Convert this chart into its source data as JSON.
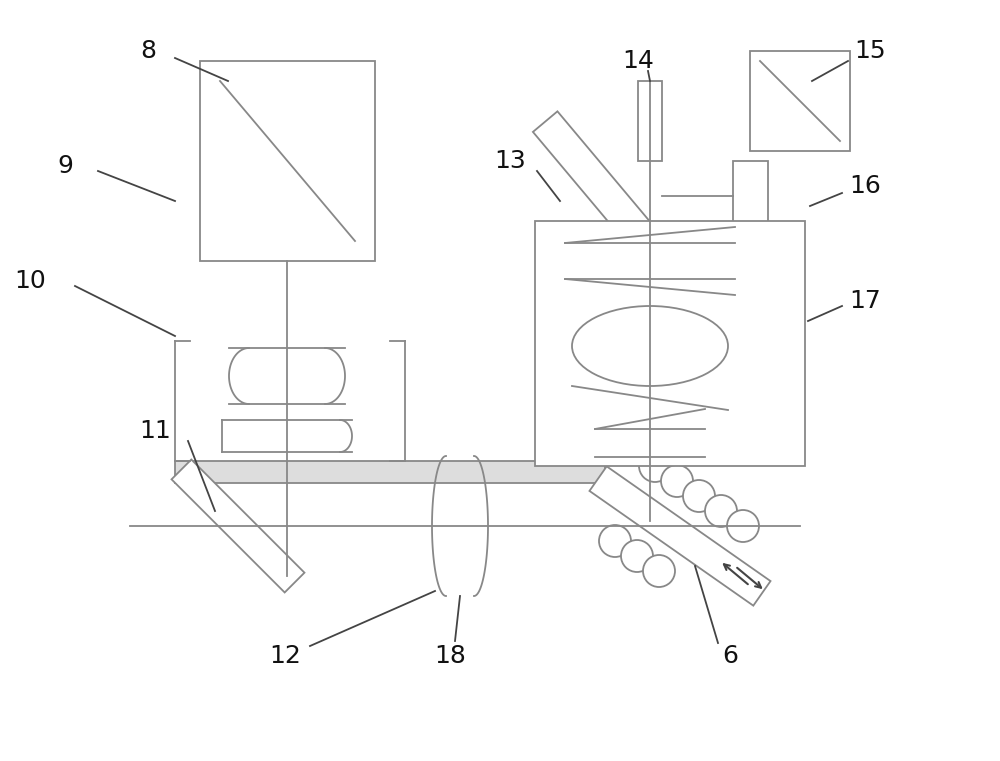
{
  "bg_color": "#ffffff",
  "lc": "#888888",
  "dc": "#444444",
  "fig_width": 10.0,
  "fig_height": 7.61,
  "dpi": 100
}
